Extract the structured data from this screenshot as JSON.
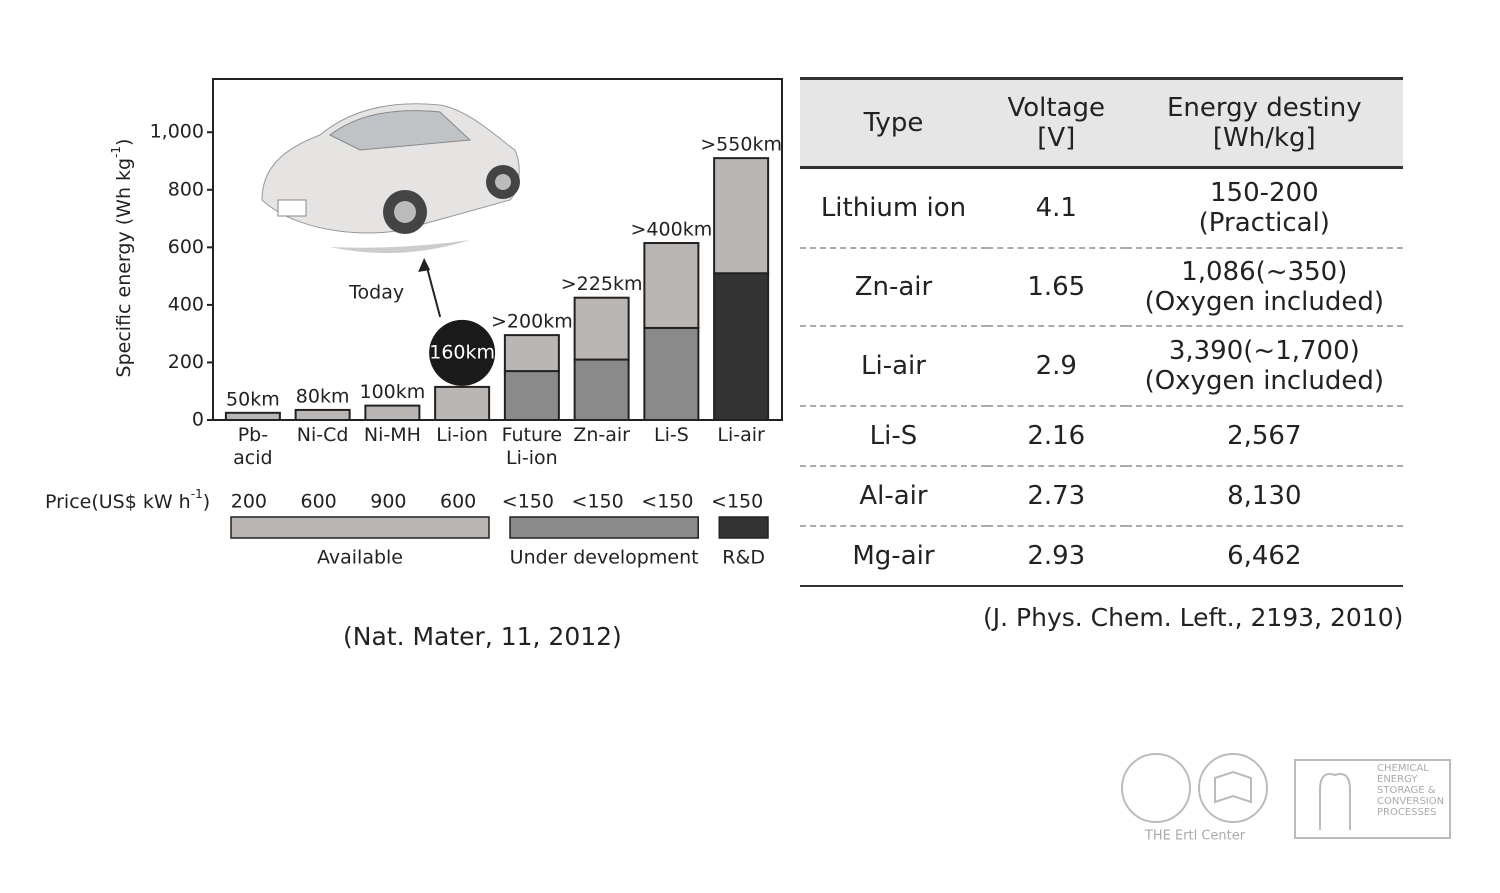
{
  "chart_data": {
    "type": "bar",
    "y_label": {
      "text": "Specific energy (Wh kg",
      "sup": "-1",
      "after": ")"
    },
    "categories": [
      "Pb-acid",
      "Ni-Cd",
      "Ni-MH",
      "Li-ion",
      "Future Li-ion",
      "Zn-air",
      "Li-S",
      "Li-air"
    ],
    "series": [
      {
        "colors": [
          "#bab6b3",
          "#bab6b3",
          "#bab6b3",
          "#bab6b3",
          "#8a8a8a",
          "#8a8a8a",
          "#8a8a8a",
          "#333333"
        ],
        "values": [
          25,
          35,
          50,
          115,
          170,
          210,
          320,
          510
        ]
      },
      {
        "color": "#bab6b3",
        "values": [
          null,
          null,
          null,
          null,
          125,
          215,
          295,
          400
        ]
      }
    ],
    "bar_labels": [
      "50km",
      "80km",
      "100km",
      "160km",
      ">200km",
      ">225km",
      ">400km",
      ">550km"
    ],
    "highlight": {
      "category": "Li-ion",
      "annotation": "Today"
    },
    "ylim": [
      0,
      1185
    ],
    "yticks": [
      0,
      200,
      400,
      600,
      800,
      {
        "value": 1000,
        "label": "1,000"
      }
    ],
    "price_label": {
      "text": "Price(US$ kW h",
      "sup": "-1",
      "after": ")"
    },
    "prices": [
      "200",
      "600",
      "900",
      "600",
      "<150",
      "<150",
      "<150",
      "<150"
    ],
    "stages": [
      "Available",
      "Available",
      "Available",
      "Available",
      "Under development",
      "Under development",
      "Under development",
      "R&D"
    ],
    "stage_colors": {
      "Available": "#bab6b3",
      "Under development": "#8a8a8a",
      "R&D": "#333333"
    },
    "source": "(Nat. Mater, 11, 2012)"
  },
  "table": {
    "header": [
      "Type",
      "Voltage\n[V]",
      "Energy destiny\n[Wh/kg]"
    ],
    "rows": [
      [
        "Lithium ion",
        "4.1",
        "150-200\n(Practical)"
      ],
      [
        "Zn-air",
        "1.65",
        "1,086(~350)\n(Oxygen included)"
      ],
      [
        "Li-air",
        "2.9",
        "3,390(~1,700)\n(Oxygen included)"
      ],
      [
        "Li-S",
        "2.16",
        "2,567"
      ],
      [
        "Al-air",
        "2.73",
        "8,130"
      ],
      [
        "Mg-air",
        "2.93",
        "6,462"
      ]
    ],
    "source": "(J. Phys. Chem. Left., 2193, 2010)"
  },
  "logos": {
    "ertl": "THE Ertl Center",
    "cesp": "CHEMICAL ENERGY STORAGE & CONVERSION PROCESSES"
  }
}
